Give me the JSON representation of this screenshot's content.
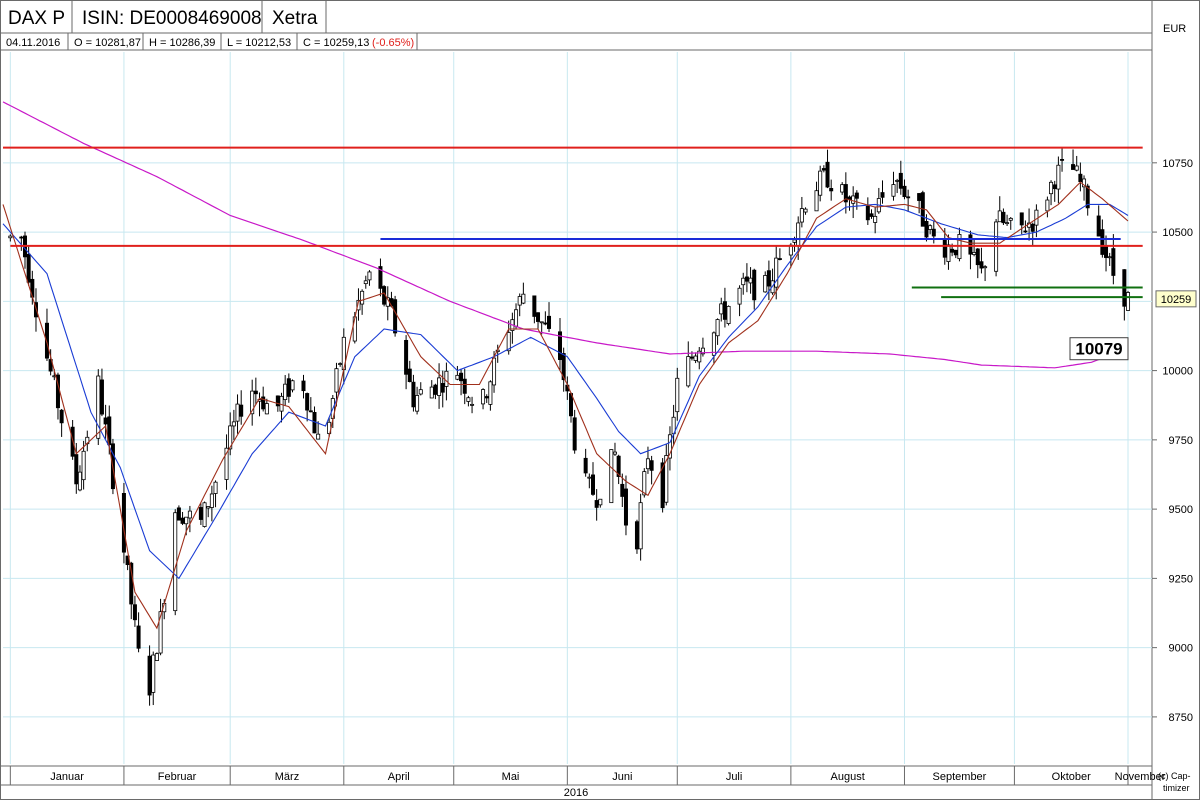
{
  "header": {
    "title": "DAX P",
    "isin": "ISIN: DE0008469008",
    "exchange": "Xetra",
    "currency": "EUR",
    "date": "04.11.2016",
    "open": "O = 10281,87",
    "high": "H = 10286,39",
    "low": "L = 10212,53",
    "close": "C = 10259,13",
    "change": "(-0.65%)"
  },
  "footer": {
    "year": "2016",
    "credit_line1": "(c) Cap-",
    "credit_line2": "timizer"
  },
  "colors": {
    "background": "#ffffff",
    "grid": "#c8e8f0",
    "candle": "#000000",
    "ma_fast": "#a0301c",
    "ma_mid": "#1a3cd4",
    "ma_200": "#c818c8",
    "resistance": "#e0201c",
    "support_blue": "#1a2cd8",
    "support_green": "#107010",
    "change_negative": "#e0201c"
  },
  "chart_data": {
    "type": "candlestick",
    "ylim": [
      8580,
      11150
    ],
    "y_ticks": [
      8750,
      9000,
      9250,
      9500,
      9750,
      10000,
      10250,
      10500,
      10750
    ],
    "y_tick_labels": [
      "8750",
      "9000",
      "9250",
      "9500",
      "9750",
      "10000",
      "",
      "10500",
      "10750"
    ],
    "x_range_days": [
      -2,
      311
    ],
    "months": [
      {
        "label": "Januar",
        "start": 0,
        "end": 31
      },
      {
        "label": "Februar",
        "start": 31,
        "end": 60
      },
      {
        "label": "März",
        "start": 60,
        "end": 91
      },
      {
        "label": "April",
        "start": 91,
        "end": 121
      },
      {
        "label": "Mai",
        "start": 121,
        "end": 152
      },
      {
        "label": "Juni",
        "start": 152,
        "end": 182
      },
      {
        "label": "Juli",
        "start": 182,
        "end": 213
      },
      {
        "label": "August",
        "start": 213,
        "end": 244
      },
      {
        "label": "September",
        "start": 244,
        "end": 274
      },
      {
        "label": "Oktober",
        "start": 274,
        "end": 305
      },
      {
        "label": "November",
        "start": 305,
        "end": 335
      }
    ],
    "last_price_label": "10259",
    "last_price": 10259,
    "ma200_label": "10079",
    "ma200_value": 10079,
    "horizontal_levels": [
      {
        "name": "resistance-high",
        "value": 10805,
        "from": -2,
        "to": 309,
        "color": "resistance"
      },
      {
        "name": "resistance-low",
        "value": 10450,
        "from": 0,
        "to": 309,
        "color": "resistance"
      },
      {
        "name": "support-blue",
        "value": 10475,
        "from": 101,
        "to": 303,
        "color": "support_blue"
      },
      {
        "name": "support-green-upper",
        "value": 10300,
        "from": 246,
        "to": 309,
        "color": "support_green"
      },
      {
        "name": "support-green-lower",
        "value": 10265,
        "from": 254,
        "to": 309,
        "color": "support_green"
      }
    ],
    "trend_anchors": [
      [
        3,
        10480
      ],
      [
        10,
        10050
      ],
      [
        18,
        9600
      ],
      [
        24,
        9950
      ],
      [
        30,
        9450
      ],
      [
        37,
        8780
      ],
      [
        41,
        9100
      ],
      [
        45,
        9500
      ],
      [
        52,
        9450
      ],
      [
        59,
        9720
      ],
      [
        65,
        9950
      ],
      [
        72,
        9850
      ],
      [
        79,
        10000
      ],
      [
        85,
        9700
      ],
      [
        91,
        10100
      ],
      [
        98,
        10350
      ],
      [
        104,
        10200
      ],
      [
        110,
        9900
      ],
      [
        116,
        9950
      ],
      [
        122,
        10000
      ],
      [
        128,
        9850
      ],
      [
        134,
        10100
      ],
      [
        140,
        10280
      ],
      [
        146,
        10150
      ],
      [
        150,
        10050
      ],
      [
        156,
        9600
      ],
      [
        160,
        9550
      ],
      [
        165,
        9700
      ],
      [
        170,
        9300
      ],
      [
        174,
        9700
      ],
      [
        178,
        9550
      ],
      [
        182,
        9950
      ],
      [
        188,
        10100
      ],
      [
        194,
        10200
      ],
      [
        200,
        10300
      ],
      [
        206,
        10300
      ],
      [
        212,
        10450
      ],
      [
        218,
        10650
      ],
      [
        223,
        10700
      ],
      [
        229,
        10600
      ],
      [
        235,
        10550
      ],
      [
        241,
        10700
      ],
      [
        247,
        10600
      ],
      [
        253,
        10450
      ],
      [
        259,
        10450
      ],
      [
        265,
        10350
      ],
      [
        269,
        10550
      ],
      [
        274,
        10500
      ],
      [
        280,
        10550
      ],
      [
        285,
        10700
      ],
      [
        289,
        10750
      ],
      [
        293,
        10650
      ],
      [
        297,
        10500
      ],
      [
        300,
        10380
      ],
      [
        303,
        10290
      ],
      [
        305,
        10259
      ]
    ],
    "ma_fast_anchors": [
      [
        -2,
        10600
      ],
      [
        10,
        10100
      ],
      [
        18,
        9700
      ],
      [
        26,
        9800
      ],
      [
        34,
        9200
      ],
      [
        40,
        9070
      ],
      [
        48,
        9420
      ],
      [
        58,
        9680
      ],
      [
        68,
        9900
      ],
      [
        76,
        9870
      ],
      [
        86,
        9700
      ],
      [
        95,
        10250
      ],
      [
        102,
        10280
      ],
      [
        112,
        10050
      ],
      [
        120,
        9950
      ],
      [
        128,
        9950
      ],
      [
        136,
        10150
      ],
      [
        144,
        10150
      ],
      [
        152,
        9950
      ],
      [
        160,
        9700
      ],
      [
        168,
        9600
      ],
      [
        174,
        9550
      ],
      [
        180,
        9700
      ],
      [
        188,
        9950
      ],
      [
        196,
        10100
      ],
      [
        204,
        10180
      ],
      [
        212,
        10350
      ],
      [
        220,
        10550
      ],
      [
        228,
        10620
      ],
      [
        236,
        10590
      ],
      [
        244,
        10600
      ],
      [
        250,
        10580
      ],
      [
        256,
        10480
      ],
      [
        262,
        10460
      ],
      [
        270,
        10460
      ],
      [
        278,
        10530
      ],
      [
        286,
        10600
      ],
      [
        292,
        10680
      ],
      [
        298,
        10620
      ],
      [
        305,
        10540
      ]
    ],
    "ma_mid_anchors": [
      [
        -2,
        10530
      ],
      [
        10,
        10350
      ],
      [
        22,
        9850
      ],
      [
        30,
        9650
      ],
      [
        38,
        9350
      ],
      [
        46,
        9250
      ],
      [
        56,
        9470
      ],
      [
        66,
        9700
      ],
      [
        76,
        9850
      ],
      [
        86,
        9800
      ],
      [
        94,
        10050
      ],
      [
        102,
        10150
      ],
      [
        112,
        10130
      ],
      [
        122,
        10000
      ],
      [
        132,
        10050
      ],
      [
        142,
        10120
      ],
      [
        152,
        10050
      ],
      [
        160,
        9900
      ],
      [
        166,
        9780
      ],
      [
        172,
        9700
      ],
      [
        180,
        9740
      ],
      [
        188,
        9980
      ],
      [
        196,
        10120
      ],
      [
        204,
        10230
      ],
      [
        212,
        10380
      ],
      [
        220,
        10520
      ],
      [
        228,
        10590
      ],
      [
        236,
        10600
      ],
      [
        244,
        10580
      ],
      [
        254,
        10530
      ],
      [
        264,
        10490
      ],
      [
        272,
        10480
      ],
      [
        280,
        10500
      ],
      [
        288,
        10550
      ],
      [
        294,
        10600
      ],
      [
        300,
        10600
      ],
      [
        305,
        10560
      ]
    ],
    "ma200_anchors": [
      [
        -2,
        10970
      ],
      [
        20,
        10820
      ],
      [
        40,
        10700
      ],
      [
        60,
        10560
      ],
      [
        80,
        10470
      ],
      [
        100,
        10370
      ],
      [
        120,
        10250
      ],
      [
        140,
        10150
      ],
      [
        160,
        10100
      ],
      [
        180,
        10060
      ],
      [
        200,
        10070
      ],
      [
        220,
        10070
      ],
      [
        240,
        10060
      ],
      [
        255,
        10040
      ],
      [
        265,
        10020
      ],
      [
        285,
        10010
      ],
      [
        295,
        10030
      ],
      [
        305,
        10079
      ]
    ]
  }
}
